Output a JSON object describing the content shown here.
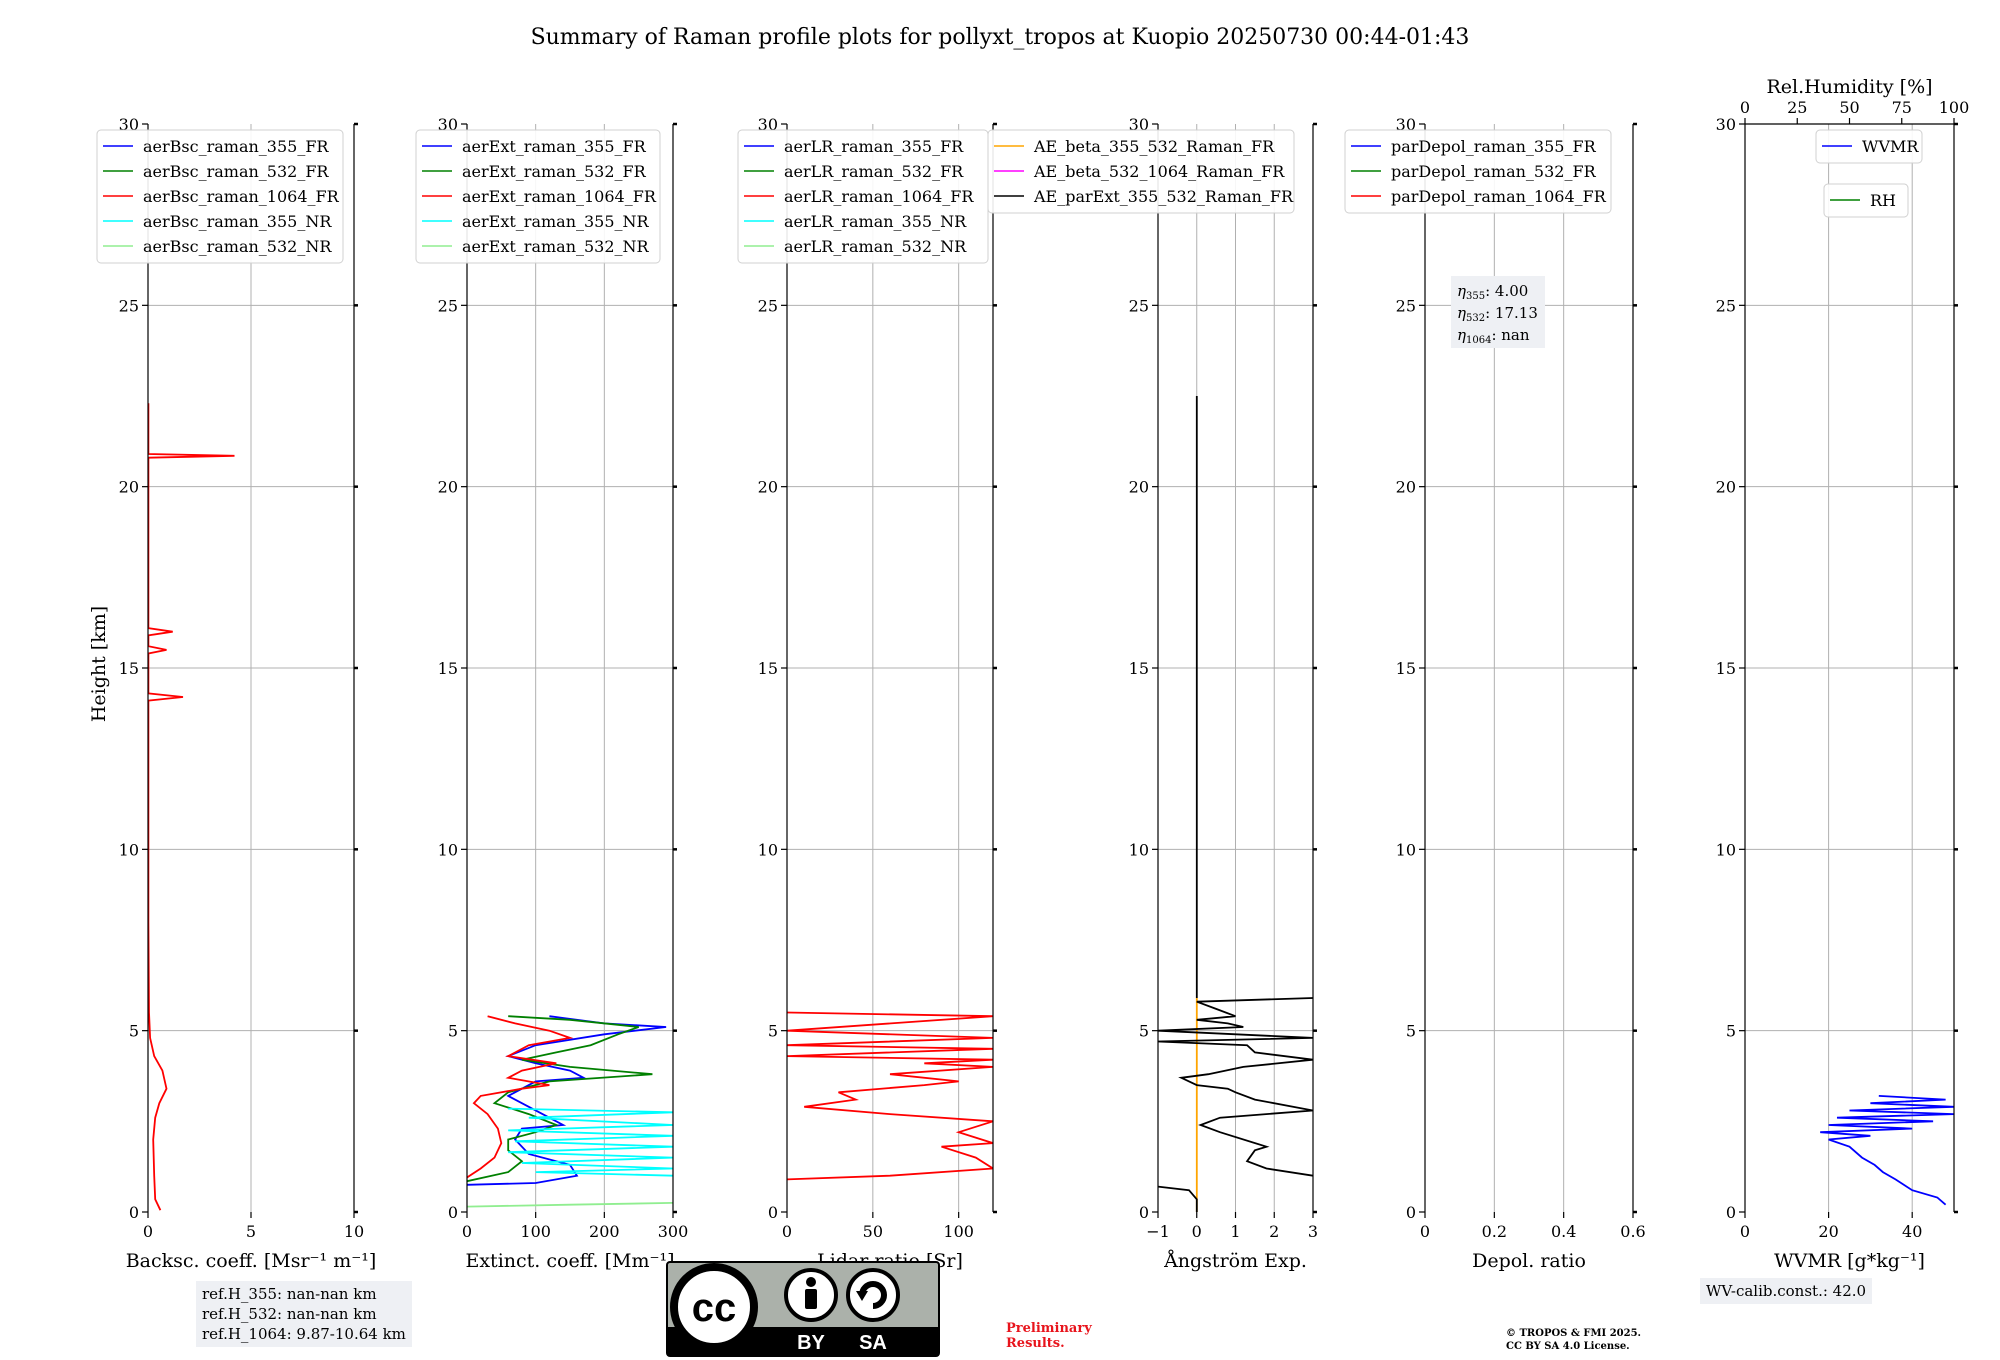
{
  "title": "Summary of Raman profile plots for pollyxt_tropos at Kuopio 20250730 00:44-01:43",
  "colors": {
    "blue": "#0000ff",
    "green": "#008000",
    "red": "#ff0000",
    "cyan": "#00ffff",
    "lightgreen": "#90ee90",
    "orange": "#ffa500",
    "magenta": "#ff00ff",
    "black": "#000000",
    "grid": "#b0b0b0"
  },
  "chart_data": [
    {
      "type": "line",
      "ylabel": "Height [km]",
      "xlabel": "Backsc. coeff. [Msr⁻¹ m⁻¹]",
      "xlim": [
        0,
        10
      ],
      "ylim": [
        0,
        30
      ],
      "xticks": [
        0,
        5,
        10
      ],
      "yticks": [
        0,
        5,
        10,
        15,
        20,
        25,
        30
      ],
      "legend": "upper-left",
      "series": [
        {
          "name": "aerBsc_raman_355_FR",
          "color": "blue",
          "points": []
        },
        {
          "name": "aerBsc_raman_532_FR",
          "color": "green",
          "points": []
        },
        {
          "name": "aerBsc_raman_1064_FR",
          "color": "red",
          "points": [
            [
              0.6,
              0.05
            ],
            [
              0.35,
              0.35
            ],
            [
              0.3,
              1.0
            ],
            [
              0.25,
              2.0
            ],
            [
              0.35,
              2.6
            ],
            [
              0.55,
              3.0
            ],
            [
              0.9,
              3.4
            ],
            [
              0.7,
              3.9
            ],
            [
              0.3,
              4.3
            ],
            [
              0.1,
              4.8
            ],
            [
              0.05,
              5.5
            ],
            [
              0.02,
              8
            ],
            [
              0.02,
              14.1
            ],
            [
              1.7,
              14.2
            ],
            [
              0.02,
              14.3
            ],
            [
              0.02,
              15.4
            ],
            [
              0.9,
              15.5
            ],
            [
              0.02,
              15.6
            ],
            [
              0.02,
              15.9
            ],
            [
              1.2,
              16.0
            ],
            [
              0.02,
              16.1
            ],
            [
              0.02,
              20.8
            ],
            [
              4.2,
              20.85
            ],
            [
              0.02,
              20.9
            ],
            [
              0.02,
              22.3
            ]
          ]
        },
        {
          "name": "aerBsc_raman_355_NR",
          "color": "cyan",
          "points": []
        },
        {
          "name": "aerBsc_raman_532_NR",
          "color": "lightgreen",
          "points": []
        }
      ]
    },
    {
      "type": "line",
      "xlabel": "Extinct. coeff. [Mm⁻¹]",
      "xlim": [
        0,
        300
      ],
      "ylim": [
        0,
        30
      ],
      "xticks": [
        0,
        100,
        200,
        300
      ],
      "yticks": [
        0,
        5,
        10,
        15,
        20,
        25,
        30
      ],
      "legend": "upper-left",
      "series": [
        {
          "name": "aerExt_raman_355_FR",
          "color": "blue",
          "points": [
            [
              0,
              0.75
            ],
            [
              100,
              0.8
            ],
            [
              160,
              1.0
            ],
            [
              150,
              1.3
            ],
            [
              90,
              1.6
            ],
            [
              70,
              2.0
            ],
            [
              80,
              2.3
            ],
            [
              140,
              2.4
            ],
            [
              120,
              2.6
            ],
            [
              80,
              3.0
            ],
            [
              60,
              3.2
            ],
            [
              100,
              3.6
            ],
            [
              170,
              3.7
            ],
            [
              150,
              3.9
            ],
            [
              100,
              4.1
            ],
            [
              60,
              4.3
            ],
            [
              100,
              4.6
            ],
            [
              200,
              4.9
            ],
            [
              290,
              5.1
            ],
            [
              200,
              5.2
            ],
            [
              120,
              5.4
            ]
          ]
        },
        {
          "name": "aerExt_raman_532_FR",
          "color": "green",
          "points": [
            [
              0,
              0.85
            ],
            [
              60,
              1.1
            ],
            [
              80,
              1.4
            ],
            [
              60,
              1.7
            ],
            [
              60,
              2.0
            ],
            [
              100,
              2.2
            ],
            [
              130,
              2.4
            ],
            [
              90,
              2.7
            ],
            [
              40,
              3.0
            ],
            [
              60,
              3.3
            ],
            [
              120,
              3.6
            ],
            [
              270,
              3.8
            ],
            [
              150,
              4.0
            ],
            [
              80,
              4.2
            ],
            [
              130,
              4.4
            ],
            [
              180,
              4.6
            ],
            [
              220,
              4.9
            ],
            [
              250,
              5.1
            ],
            [
              150,
              5.3
            ],
            [
              60,
              5.4
            ]
          ]
        },
        {
          "name": "aerExt_raman_1064_FR",
          "color": "red",
          "points": [
            [
              0,
              0.95
            ],
            [
              20,
              1.2
            ],
            [
              40,
              1.5
            ],
            [
              50,
              1.9
            ],
            [
              45,
              2.3
            ],
            [
              30,
              2.7
            ],
            [
              10,
              3.0
            ],
            [
              20,
              3.2
            ],
            [
              80,
              3.4
            ],
            [
              120,
              3.5
            ],
            [
              60,
              3.7
            ],
            [
              80,
              3.9
            ],
            [
              130,
              4.1
            ],
            [
              60,
              4.3
            ],
            [
              90,
              4.6
            ],
            [
              150,
              4.8
            ],
            [
              120,
              5.0
            ],
            [
              70,
              5.2
            ],
            [
              30,
              5.4
            ]
          ]
        },
        {
          "name": "aerExt_raman_355_NR",
          "color": "cyan",
          "points": [
            [
              300,
              1.0
            ],
            [
              100,
              1.1
            ],
            [
              300,
              1.2
            ],
            [
              80,
              1.35
            ],
            [
              300,
              1.5
            ],
            [
              60,
              1.65
            ],
            [
              300,
              1.8
            ],
            [
              70,
              1.95
            ],
            [
              300,
              2.1
            ],
            [
              60,
              2.25
            ],
            [
              300,
              2.4
            ],
            [
              90,
              2.6
            ],
            [
              300,
              2.75
            ],
            [
              60,
              2.85
            ]
          ]
        },
        {
          "name": "aerExt_raman_532_NR",
          "color": "lightgreen",
          "points": [
            [
              0,
              0.15
            ],
            [
              150,
              0.2
            ],
            [
              300,
              0.25
            ]
          ]
        }
      ]
    },
    {
      "type": "line",
      "xlabel": "Lidar ratio [Sr]",
      "xlim": [
        0,
        120
      ],
      "ylim": [
        0,
        30
      ],
      "xticks": [
        0,
        50,
        100
      ],
      "yticks": [
        0,
        5,
        10,
        15,
        20,
        25,
        30
      ],
      "legend": "upper-left",
      "series": [
        {
          "name": "aerLR_raman_355_FR",
          "color": "blue",
          "points": []
        },
        {
          "name": "aerLR_raman_532_FR",
          "color": "green",
          "points": []
        },
        {
          "name": "aerLR_raman_1064_FR",
          "color": "red",
          "points": [
            [
              0,
              0.9
            ],
            [
              60,
              1.0
            ],
            [
              120,
              1.2
            ],
            [
              110,
              1.5
            ],
            [
              90,
              1.8
            ],
            [
              120,
              1.9
            ],
            [
              100,
              2.2
            ],
            [
              120,
              2.5
            ],
            [
              60,
              2.7
            ],
            [
              10,
              2.9
            ],
            [
              40,
              3.1
            ],
            [
              30,
              3.3
            ],
            [
              80,
              3.5
            ],
            [
              100,
              3.6
            ],
            [
              60,
              3.8
            ],
            [
              120,
              4.0
            ],
            [
              80,
              4.1
            ],
            [
              120,
              4.2
            ],
            [
              0,
              4.3
            ],
            [
              120,
              4.5
            ],
            [
              0,
              4.6
            ],
            [
              120,
              4.8
            ],
            [
              0,
              5.0
            ],
            [
              120,
              5.4
            ],
            [
              0,
              5.5
            ]
          ]
        },
        {
          "name": "aerLR_raman_355_NR",
          "color": "cyan",
          "points": []
        },
        {
          "name": "aerLR_raman_532_NR",
          "color": "lightgreen",
          "points": []
        }
      ]
    },
    {
      "type": "line",
      "xlabel": "Ångström Exp.",
      "xlim": [
        -1,
        3
      ],
      "ylim": [
        0,
        30
      ],
      "xticks": [
        -1,
        0,
        1,
        2,
        3
      ],
      "yticks": [
        0,
        5,
        10,
        15,
        20,
        25,
        30
      ],
      "legend": "upper-left",
      "series": [
        {
          "name": "AE_beta_355_532_Raman_FR",
          "color": "orange",
          "points": [
            [
              0,
              0
            ],
            [
              0,
              5.9
            ]
          ]
        },
        {
          "name": "AE_beta_532_1064_Raman_FR",
          "color": "magenta",
          "points": []
        },
        {
          "name": "AE_parExt_355_532_Raman_FR",
          "color": "black",
          "points": [
            [
              3,
              1.0
            ],
            [
              1.8,
              1.2
            ],
            [
              1.3,
              1.4
            ],
            [
              1.5,
              1.7
            ],
            [
              1.8,
              1.8
            ],
            [
              0.6,
              2.2
            ],
            [
              0.1,
              2.4
            ],
            [
              0.6,
              2.6
            ],
            [
              3,
              2.8
            ],
            [
              1.5,
              3.1
            ],
            [
              1.0,
              3.3
            ],
            [
              0.8,
              3.4
            ],
            [
              0,
              3.5
            ],
            [
              -0.4,
              3.7
            ],
            [
              0.3,
              3.8
            ],
            [
              1.2,
              4.0
            ],
            [
              3,
              4.2
            ],
            [
              1.5,
              4.4
            ],
            [
              1.3,
              4.6
            ],
            [
              -1,
              4.7
            ],
            [
              3,
              4.8
            ],
            [
              -1,
              5.0
            ],
            [
              1.2,
              5.1
            ],
            [
              0.8,
              5.2
            ],
            [
              0,
              5.3
            ],
            [
              1.0,
              5.4
            ],
            [
              0.5,
              5.6
            ],
            [
              0,
              5.8
            ],
            [
              3,
              5.9
            ]
          ]
        },
        {
          "name": "AE_parExt_lower",
          "color": "black",
          "points": [
            [
              -1,
              0.7
            ],
            [
              -0.2,
              0.6
            ],
            [
              0,
              0.35
            ],
            [
              0,
              0
            ]
          ]
        },
        {
          "name": "AE_parExt_upper",
          "color": "black",
          "points": [
            [
              0,
              5.9
            ],
            [
              0,
              22.5
            ]
          ]
        }
      ]
    },
    {
      "type": "line",
      "xlabel": "Depol. ratio",
      "xlim": [
        0,
        0.6
      ],
      "ylim": [
        0,
        30
      ],
      "xticks": [
        0.0,
        0.2,
        0.4,
        0.6
      ],
      "yticks": [
        0,
        5,
        10,
        15,
        20,
        25,
        30
      ],
      "legend": "upper-left",
      "series": [
        {
          "name": "parDepol_raman_355_FR",
          "color": "blue",
          "points": []
        },
        {
          "name": "parDepol_raman_532_FR",
          "color": "green",
          "points": []
        },
        {
          "name": "parDepol_raman_1064_FR",
          "color": "red",
          "points": []
        }
      ],
      "eta_box": [
        {
          "sub": "355",
          "value": "4.00"
        },
        {
          "sub": "532",
          "value": "17.13"
        },
        {
          "sub": "1064",
          "value": "nan"
        }
      ]
    },
    {
      "type": "line",
      "xlabel": "WVMR [g*kg⁻¹]",
      "xlabel_top": "Rel.Humidity [%]",
      "xlim": [
        0,
        50
      ],
      "ylim": [
        0,
        30
      ],
      "xticks": [
        0,
        20,
        40
      ],
      "xticks_top": [
        0,
        25,
        50,
        75,
        100
      ],
      "yticks": [
        0,
        5,
        10,
        15,
        20,
        25,
        30
      ],
      "series": [
        {
          "name": "WVMR",
          "color": "blue",
          "points": [
            [
              48,
              0.2
            ],
            [
              46,
              0.4
            ],
            [
              40,
              0.6
            ],
            [
              36,
              0.9
            ],
            [
              33,
              1.1
            ],
            [
              31,
              1.3
            ],
            [
              28,
              1.5
            ],
            [
              25,
              1.8
            ],
            [
              20,
              2.0
            ],
            [
              30,
              2.1
            ],
            [
              18,
              2.2
            ],
            [
              40,
              2.3
            ],
            [
              20,
              2.4
            ],
            [
              45,
              2.5
            ],
            [
              22,
              2.6
            ],
            [
              50,
              2.7
            ],
            [
              25,
              2.8
            ],
            [
              50,
              2.9
            ],
            [
              30,
              3.0
            ],
            [
              48,
              3.1
            ],
            [
              32,
              3.2
            ]
          ]
        },
        {
          "name": "RH",
          "color": "green",
          "points": []
        }
      ]
    }
  ],
  "ref_box": [
    "ref.H_355: nan-nan km",
    "ref.H_532: nan-nan km",
    "ref.H_1064: 9.87-10.64 km"
  ],
  "wv_calib": "WV-calib.const.: 42.0",
  "cc_badge": {
    "by": "BY",
    "sa": "SA",
    "cc": "cc"
  },
  "prelim_text": [
    "Preliminary",
    "Results."
  ],
  "copyright_text": [
    "© TROPOS & FMI 2025.",
    "CC BY SA 4.0 License."
  ]
}
